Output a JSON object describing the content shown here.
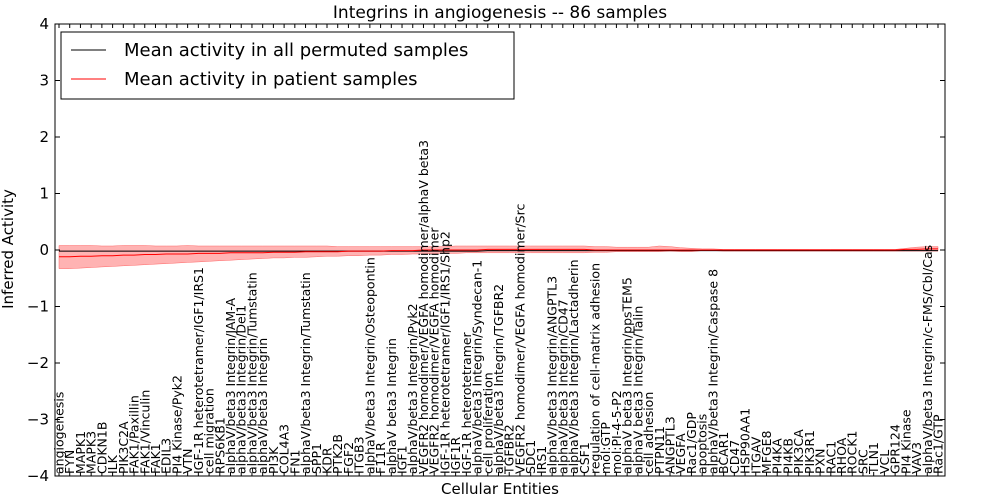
{
  "chart_data": {
    "type": "line",
    "title": "Integrins in angiogenesis -- 86 samples",
    "xlabel": "Cellular Entities",
    "ylabel": "Inferred Activity",
    "ylim": [
      -4,
      4
    ],
    "yticks": [
      4,
      3,
      2,
      1,
      0,
      -1,
      -2,
      -3,
      -4
    ],
    "grid": false,
    "legend_position": "top-left",
    "legend": [
      {
        "label": "Mean activity in all permuted samples",
        "color": "#000000"
      },
      {
        "label": "Mean activity in patient samples",
        "color": "#ff0000"
      }
    ],
    "categories": [
      "angiogenesis",
      "FYN",
      "MAPK1",
      "MAPK3",
      "CDKN1B",
      "ILK",
      "PIK3C2A",
      "FAK1/Paxillin",
      "FAK1/Vinculin",
      "FAK1",
      "EDIL3",
      "PI4 Kinase/Pyk2",
      "VTN",
      "IGF-1R heterotetramer/IGF1/IRS1",
      "cell migration",
      "RPS6KB1",
      "alphaV/beta3 Integrin/JAM-A",
      "alphaV/beta3 Integrin/Del1",
      "alphaV/beta3 Integrin/Tumstatin",
      "alphaV/beta3 Integrin",
      "PI3K",
      "COL4A3",
      "FN1",
      "alphaV/beta3 Integrin/Tumstatin",
      "SPP1",
      "KDR",
      "PTK2B",
      "FGF2",
      "ITGB3",
      "alphaV/beta3 Integrin/Osteopontin",
      "F11R",
      "alphaV beta3 Integrin",
      "IGF1",
      "alphaV/beta3 Integrin/Pyk2",
      "VEGFR2 homodimer/VEGFA homodimer/alphaV beta3",
      "VEGFR2 homodimer/VEGFA homodimer",
      "IGF-1R heterotetramer/IGF1/IRS1/Shp2",
      "IGF1R",
      "IGF-1R heterotetramer",
      "alphaV/beta3 Integrin/Syndecan-1",
      "cell proliferation",
      "alphaV/beta3 Integrin/TGFBR2",
      "TGFBR2",
      "VEGFR2 homodimer/VEGFA homodimer/Src",
      "SDC1",
      "IRS1",
      "alphaV/beta3 Integrin/ANGPTL3",
      "alphaV/beta3 Integrin/CD47",
      "alphaV/beta3 Integrin/Lactadherin",
      "CSF1",
      "regulation of cell-matrix adhesion",
      "mol:GTP",
      "mol:PI-4-5-P2",
      "alphaV beta3 Integrin/ppsTEM5",
      "alphaV beta3 Integrin/Talin",
      "cell adhesion",
      "PTPN11",
      "ANGPTL3",
      "VEGFA",
      "Rac1/GDP",
      "apoptosis",
      "alphaV/beta3 Integrin/Caspase 8",
      "BCAR1",
      "CD47",
      "HSP90AA1",
      "ITGAV",
      "MFGE8",
      "PI4KA",
      "PI4KB",
      "PIK3CA",
      "PIK3R1",
      "PXN",
      "RAC1",
      "RHOA",
      "ROCK1",
      "SRC",
      "TLN1",
      "VCL",
      "GPR124",
      "PI4 Kinase",
      "VAV3",
      "alphaV/beta3 Integrin/c-FMS/Cbl/Cas",
      "Rac1/GTP"
    ],
    "series": [
      {
        "name": "Mean activity in all permuted samples",
        "color": "#000000",
        "values": [
          -0.02,
          -0.02,
          -0.02,
          -0.02,
          -0.02,
          -0.02,
          -0.02,
          -0.02,
          -0.02,
          -0.02,
          -0.02,
          -0.02,
          -0.02,
          -0.02,
          -0.02,
          -0.02,
          -0.02,
          -0.02,
          -0.02,
          -0.02,
          -0.02,
          -0.02,
          -0.02,
          -0.02,
          -0.02,
          -0.02,
          -0.02,
          -0.02,
          -0.02,
          -0.02,
          -0.02,
          -0.02,
          -0.02,
          -0.02,
          -0.02,
          -0.02,
          -0.02,
          -0.02,
          -0.02,
          -0.02,
          -0.01,
          -0.01,
          -0.01,
          -0.01,
          -0.01,
          -0.01,
          -0.01,
          -0.01,
          -0.01,
          -0.01,
          -0.01,
          -0.01,
          -0.01,
          -0.01,
          -0.01,
          -0.01,
          -0.01,
          -0.01,
          -0.01,
          -0.01,
          -0.01,
          -0.01,
          -0.01,
          -0.01,
          -0.01,
          -0.01,
          -0.01,
          -0.01,
          -0.01,
          -0.01,
          -0.01,
          -0.01,
          -0.01,
          -0.01,
          -0.01,
          -0.01,
          -0.01,
          -0.01,
          -0.01,
          -0.01,
          -0.01,
          -0.01,
          -0.01
        ]
      },
      {
        "name": "Mean activity in patient samples",
        "color": "#ff0000",
        "values": [
          -0.12,
          -0.12,
          -0.11,
          -0.11,
          -0.1,
          -0.1,
          -0.09,
          -0.09,
          -0.08,
          -0.08,
          -0.07,
          -0.07,
          -0.07,
          -0.06,
          -0.06,
          -0.06,
          -0.05,
          -0.05,
          -0.05,
          -0.05,
          -0.04,
          -0.04,
          -0.04,
          -0.03,
          -0.03,
          -0.03,
          -0.03,
          -0.02,
          -0.02,
          -0.02,
          -0.02,
          -0.01,
          -0.01,
          -0.01,
          0.0,
          0.0,
          0.0,
          0.0,
          0.0,
          0.0,
          0.01,
          0.01,
          0.01,
          0.01,
          0.01,
          0.01,
          0.01,
          0.01,
          0.01,
          0.01,
          0.0,
          0.0,
          0.0,
          0.0,
          0.0,
          0.0,
          0.0,
          0.0,
          0.0,
          0.0,
          0.0,
          0.0,
          0.0,
          0.0,
          0.0,
          0.0,
          0.0,
          0.0,
          0.0,
          0.0,
          0.0,
          0.0,
          0.0,
          0.0,
          0.0,
          0.0,
          0.0,
          0.0,
          0.0,
          0.01,
          0.01,
          0.02,
          0.02
        ],
        "band_upper": [
          0.08,
          0.08,
          0.08,
          0.08,
          0.07,
          0.07,
          0.08,
          0.08,
          0.08,
          0.07,
          0.07,
          0.07,
          0.08,
          0.07,
          0.07,
          0.07,
          0.07,
          0.07,
          0.07,
          0.07,
          0.07,
          0.07,
          0.07,
          0.07,
          0.07,
          0.07,
          0.06,
          0.06,
          0.06,
          0.06,
          0.06,
          0.06,
          0.06,
          0.06,
          0.06,
          0.06,
          0.06,
          0.07,
          0.07,
          0.07,
          0.07,
          0.07,
          0.07,
          0.07,
          0.07,
          0.07,
          0.07,
          0.07,
          0.07,
          0.07,
          0.06,
          0.06,
          0.05,
          0.05,
          0.05,
          0.05,
          0.07,
          0.06,
          0.04,
          0.03,
          0.02,
          0.02,
          0.01,
          0.01,
          0.01,
          0.01,
          0.01,
          0.01,
          0.01,
          0.01,
          0.01,
          0.01,
          0.01,
          0.01,
          0.01,
          0.01,
          0.01,
          0.01,
          0.01,
          0.03,
          0.05,
          0.06,
          0.06
        ],
        "band_lower": [
          -0.33,
          -0.33,
          -0.32,
          -0.31,
          -0.3,
          -0.29,
          -0.28,
          -0.27,
          -0.26,
          -0.25,
          -0.24,
          -0.23,
          -0.22,
          -0.21,
          -0.2,
          -0.19,
          -0.18,
          -0.17,
          -0.16,
          -0.15,
          -0.14,
          -0.14,
          -0.13,
          -0.13,
          -0.12,
          -0.11,
          -0.11,
          -0.1,
          -0.1,
          -0.09,
          -0.09,
          -0.08,
          -0.08,
          -0.07,
          -0.07,
          -0.06,
          -0.06,
          -0.06,
          -0.05,
          -0.05,
          -0.05,
          -0.05,
          -0.05,
          -0.05,
          -0.05,
          -0.05,
          -0.05,
          -0.05,
          -0.05,
          -0.05,
          -0.04,
          -0.04,
          -0.03,
          -0.03,
          -0.03,
          -0.03,
          -0.03,
          -0.02,
          -0.03,
          -0.03,
          -0.01,
          -0.01,
          -0.02,
          -0.02,
          -0.02,
          -0.02,
          -0.02,
          -0.02,
          -0.02,
          -0.02,
          -0.02,
          -0.02,
          -0.02,
          -0.02,
          -0.02,
          -0.02,
          -0.02,
          -0.02,
          -0.02,
          -0.02,
          -0.02,
          -0.02,
          -0.02
        ]
      }
    ],
    "colors": {
      "band": "#ff9999",
      "permuted_band": "#ccccee"
    }
  }
}
